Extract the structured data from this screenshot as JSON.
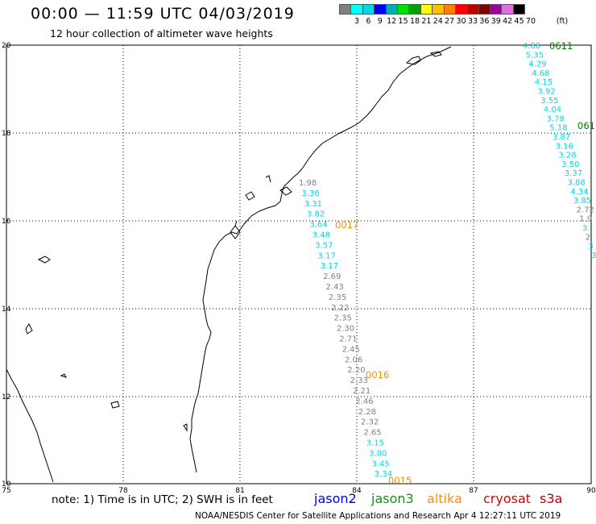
{
  "title": "00:00 — 11:59 UTC 04/03/2019",
  "subtitle": "12 hour collection of altimeter wave heights",
  "color_scale": {
    "colors": [
      "#808080",
      "#00ffff",
      "#00d8e8",
      "#0000ff",
      "#00b0b0",
      "#00e000",
      "#00a000",
      "#ffff00",
      "#ffc000",
      "#ff8000",
      "#ff0000",
      "#c00000",
      "#800000",
      "#a000a0",
      "#e070e0",
      "#000000"
    ],
    "labels": [
      "3",
      "6",
      "9",
      "12",
      "15",
      "18",
      "21",
      "24",
      "27",
      "30",
      "33",
      "36",
      "39",
      "42",
      "45",
      "70",
      "(ft)"
    ]
  },
  "axes": {
    "lon_labels": [
      "75",
      "78",
      "81",
      "84",
      "87",
      "90"
    ],
    "lat_labels": [
      "20",
      "18",
      "16",
      "14",
      "12",
      "10"
    ]
  },
  "tracks": [
    {
      "satellite": "altika",
      "time_labels": [
        {
          "text": "0017",
          "color": "#ff8c00"
        },
        {
          "text": "0016",
          "color": "#ff8c00"
        },
        {
          "text": "0015",
          "color": "#ff8c00"
        }
      ],
      "values": [
        {
          "v": "1.98",
          "c": "#808080"
        },
        {
          "v": "3.36",
          "c": "#00d8e8"
        },
        {
          "v": "3.31",
          "c": "#00d8e8"
        },
        {
          "v": "3.82",
          "c": "#00d8e8"
        },
        {
          "v": "3.64",
          "c": "#00d8e8"
        },
        {
          "v": "3.48",
          "c": "#00d8e8"
        },
        {
          "v": "3.57",
          "c": "#00d8e8"
        },
        {
          "v": "3.17",
          "c": "#00d8e8"
        },
        {
          "v": "3.17",
          "c": "#00d8e8"
        },
        {
          "v": "2.69",
          "c": "#808080"
        },
        {
          "v": "2.43",
          "c": "#808080"
        },
        {
          "v": "2.35",
          "c": "#808080"
        },
        {
          "v": "2.22",
          "c": "#808080"
        },
        {
          "v": "2.35",
          "c": "#808080"
        },
        {
          "v": "2.30",
          "c": "#808080"
        },
        {
          "v": "2.71",
          "c": "#808080"
        },
        {
          "v": "2.45",
          "c": "#808080"
        },
        {
          "v": "2.06",
          "c": "#808080"
        },
        {
          "v": "2.20",
          "c": "#808080"
        },
        {
          "v": "2.33",
          "c": "#808080"
        },
        {
          "v": "2.21",
          "c": "#808080"
        },
        {
          "v": "2.46",
          "c": "#808080"
        },
        {
          "v": "2.28",
          "c": "#808080"
        },
        {
          "v": "2.32",
          "c": "#808080"
        },
        {
          "v": "2.65",
          "c": "#808080"
        },
        {
          "v": "3.15",
          "c": "#00d8e8"
        },
        {
          "v": "3.80",
          "c": "#00d8e8"
        },
        {
          "v": "3.45",
          "c": "#00d8e8"
        },
        {
          "v": "3.34",
          "c": "#00d8e8"
        }
      ]
    },
    {
      "satellite": "jason3",
      "time_labels": [
        {
          "text": "0611",
          "color": "#008000"
        },
        {
          "text": "061",
          "color": "#008000"
        }
      ],
      "values": [
        {
          "v": "4.88",
          "c": "#00d8e8"
        },
        {
          "v": "5.35",
          "c": "#00d8e8"
        },
        {
          "v": "4.29",
          "c": "#00d8e8"
        },
        {
          "v": "4.68",
          "c": "#00d8e8"
        },
        {
          "v": "4.15",
          "c": "#00d8e8"
        },
        {
          "v": "3.92",
          "c": "#00d8e8"
        },
        {
          "v": "3.55",
          "c": "#00d8e8"
        },
        {
          "v": "4.04",
          "c": "#00d8e8"
        },
        {
          "v": "3.78",
          "c": "#00d8e8"
        },
        {
          "v": "5.18",
          "c": "#00d8e8"
        },
        {
          "v": "3.87",
          "c": "#00d8e8"
        },
        {
          "v": "3.16",
          "c": "#00d8e8"
        },
        {
          "v": "3.28",
          "c": "#00d8e8"
        },
        {
          "v": "3.50",
          "c": "#00d8e8"
        },
        {
          "v": "3.37",
          "c": "#00d8e8"
        },
        {
          "v": "3.88",
          "c": "#00d8e8"
        },
        {
          "v": "4.34",
          "c": "#00d8e8"
        },
        {
          "v": "3.85",
          "c": "#00d8e8"
        },
        {
          "v": "2.72",
          "c": "#808080"
        },
        {
          "v": "1.9",
          "c": "#808080"
        },
        {
          "v": "3.",
          "c": "#00d8e8"
        },
        {
          "v": "2.",
          "c": "#808080"
        },
        {
          "v": "3",
          "c": "#00d8e8"
        },
        {
          "v": "3",
          "c": "#00d8e8"
        }
      ]
    }
  ],
  "footer": {
    "note": "note:  1) Time is in UTC;  2) SWH is in feet",
    "credit": "NOAA/NESDIS Center for Satellite Applications and Research    Apr  4 12:27:11 UTC 2019",
    "satellites": [
      {
        "name": "jason2",
        "color": "#0000e0"
      },
      {
        "name": "jason3",
        "color": "#00a000"
      },
      {
        "name": "altika",
        "color": "#ff8c00"
      },
      {
        "name": "cryosat",
        "color": "#e00000"
      },
      {
        "name": "s3a",
        "color": "#c00000"
      }
    ]
  }
}
